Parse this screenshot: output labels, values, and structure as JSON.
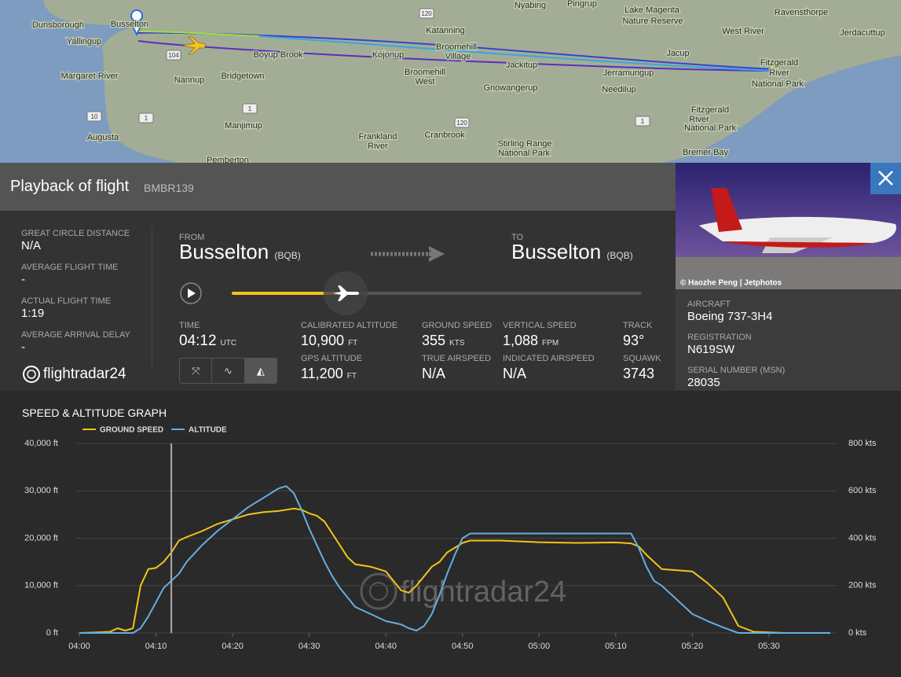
{
  "map": {
    "labels": [
      "Dunsborough",
      "Busselton",
      "Yallingup",
      "Margaret River",
      "Nannup",
      "Bridgetown",
      "Boyup Brook",
      "Manjimup",
      "Augusta",
      "Pemberton",
      "Katanning",
      "Broomehill",
      "Village",
      "Kojonup",
      "Broomehill",
      "West",
      "Jackitup",
      "Gnowangerup",
      "Frankland",
      "River",
      "Cranbrook",
      "Stirling Range",
      "National Park",
      "Nyabing",
      "Pingrup",
      "Lake Magenta",
      "Nature Reserve",
      "Ravensthorpe",
      "West River",
      "Jerdacuttup",
      "Jacup",
      "Jerramungup",
      "Needilup",
      "Fitzgerald",
      "River",
      "National Park",
      "Fitzgerald",
      "River",
      "National Park",
      "Bremer Bay"
    ],
    "shields": [
      "120",
      "104",
      "1",
      "10",
      "1",
      "120",
      "1"
    ]
  },
  "header": {
    "title": "Playback of flight",
    "flight": "BMBR139"
  },
  "photo_credit": "© Haozhe Peng | Jetphotos",
  "stats": [
    {
      "label": "GREAT CIRCLE DISTANCE",
      "value": "N/A"
    },
    {
      "label": "AVERAGE FLIGHT TIME",
      "value": "-"
    },
    {
      "label": "ACTUAL FLIGHT TIME",
      "value": "1:19"
    },
    {
      "label": "AVERAGE ARRIVAL DELAY",
      "value": "-"
    }
  ],
  "logo": "flightradar24",
  "route": {
    "from_label": "FROM",
    "from": "Busselton",
    "from_code": "(BQB)",
    "to_label": "TO",
    "to": "Busselton",
    "to_code": "(BQB)"
  },
  "info": [
    {
      "label": "TIME",
      "value": "04:12",
      "unit": "UTC"
    },
    {
      "label": "CALIBRATED ALTITUDE",
      "value": "10,900",
      "unit": "FT"
    },
    {
      "label": "GROUND SPEED",
      "value": "355",
      "unit": "KTS"
    },
    {
      "label": "VERTICAL SPEED",
      "value": "1,088",
      "unit": "FPM"
    },
    {
      "label": "TRACK",
      "value": "93°"
    },
    {
      "label": "GPS ALTITUDE",
      "value": "11,200",
      "unit": "FT"
    },
    {
      "label": "TRUE AIRSPEED",
      "value": "N/A"
    },
    {
      "label": "INDICATED AIRSPEED",
      "value": "N/A"
    },
    {
      "label": "SQUAWK",
      "value": "3743"
    }
  ],
  "aircraft": [
    {
      "label": "AIRCRAFT",
      "value": "Boeing 737-3H4"
    },
    {
      "label": "REGISTRATION",
      "value": "N619SW"
    },
    {
      "label": "SERIAL NUMBER (MSN)",
      "value": "28035"
    }
  ],
  "chart_data": {
    "type": "line",
    "title": "SPEED & ALTITUDE GRAPH",
    "watermark": "flightradar24",
    "x": [
      "04:00",
      "04:02",
      "04:04",
      "04:05",
      "04:06",
      "04:07",
      "04:08",
      "04:09",
      "04:10",
      "04:11",
      "04:12",
      "04:13",
      "04:14",
      "04:16",
      "04:18",
      "04:20",
      "04:22",
      "04:24",
      "04:26",
      "04:27",
      "04:28",
      "04:29",
      "04:30",
      "04:31",
      "04:32",
      "04:33",
      "04:34",
      "04:35",
      "04:36",
      "04:38",
      "04:40",
      "04:42",
      "04:43",
      "04:44",
      "04:45",
      "04:46",
      "04:47",
      "04:48",
      "04:49",
      "04:50",
      "04:51",
      "04:55",
      "05:00",
      "05:05",
      "05:10",
      "05:12",
      "05:13",
      "05:14",
      "05:15",
      "05:16",
      "05:18",
      "05:20",
      "05:22",
      "05:24",
      "05:26",
      "05:28",
      "05:32",
      "05:38"
    ],
    "xlim": [
      "04:00",
      "05:38"
    ],
    "xticks": [
      "04:00",
      "04:10",
      "04:20",
      "04:30",
      "04:40",
      "04:50",
      "05:00",
      "05:10",
      "05:20",
      "05:30"
    ],
    "ylim": [
      0,
      40000
    ],
    "yticks": [
      {
        "value": 0,
        "label": "0 ft"
      },
      {
        "value": 10000,
        "label": "10,000 ft"
      },
      {
        "value": 20000,
        "label": "20,000 ft"
      },
      {
        "value": 30000,
        "label": "30,000 ft"
      },
      {
        "value": 40000,
        "label": "40,000 ft"
      }
    ],
    "y2lim": [
      0,
      800
    ],
    "y2ticks": [
      {
        "value": 0,
        "label": "0 kts"
      },
      {
        "value": 200,
        "label": "200 kts"
      },
      {
        "value": 400,
        "label": "400 kts"
      },
      {
        "value": 600,
        "label": "600 kts"
      },
      {
        "value": 800,
        "label": "800 kts"
      }
    ],
    "grid": true,
    "series": [
      {
        "name": "GROUND SPEED",
        "color": "#f2c31b",
        "axis": "y2",
        "values": [
          0,
          2,
          5,
          20,
          10,
          20,
          200,
          270,
          275,
          300,
          340,
          390,
          405,
          430,
          460,
          480,
          500,
          510,
          515,
          520,
          525,
          520,
          505,
          495,
          470,
          420,
          370,
          320,
          290,
          280,
          260,
          180,
          170,
          200,
          240,
          280,
          300,
          340,
          360,
          380,
          390,
          390,
          383,
          380,
          382,
          378,
          365,
          330,
          300,
          270,
          265,
          260,
          210,
          150,
          30,
          5,
          0,
          0
        ]
      },
      {
        "name": "ALTITUDE",
        "color": "#66aee3",
        "values": [
          0,
          0,
          0,
          0,
          0,
          0,
          1000,
          3500,
          6500,
          9500,
          11000,
          12500,
          15000,
          18500,
          21500,
          24000,
          26500,
          28500,
          30500,
          31000,
          29500,
          26000,
          22000,
          18500,
          15000,
          12000,
          9500,
          7500,
          5500,
          4000,
          2500,
          1800,
          1000,
          500,
          1500,
          4000,
          8000,
          12500,
          16500,
          20000,
          21000,
          21000,
          21000,
          21000,
          21000,
          21000,
          18000,
          14000,
          11000,
          10000,
          7000,
          4000,
          2500,
          1200,
          0,
          0,
          0,
          0
        ]
      }
    ]
  }
}
